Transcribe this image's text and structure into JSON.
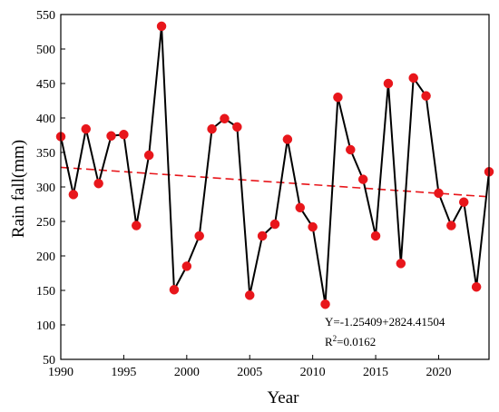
{
  "chart_data": {
    "type": "line",
    "xlabel": "Year",
    "ylabel": "Rain fall(mm)",
    "xlim": [
      1990,
      2024
    ],
    "ylim": [
      50,
      550
    ],
    "xticks": [
      1990,
      1995,
      2000,
      2005,
      2010,
      2015,
      2020
    ],
    "yticks": [
      50,
      100,
      150,
      200,
      250,
      300,
      350,
      400,
      450,
      500,
      550
    ],
    "grid": false,
    "series": [
      {
        "color": "#000000",
        "marker_color": "#e8161b",
        "x": [
          1990,
          1991,
          1992,
          1993,
          1994,
          1995,
          1996,
          1997,
          1998,
          1999,
          2000,
          2001,
          2002,
          2003,
          2004,
          2005,
          2006,
          2007,
          2008,
          2009,
          2010,
          2011,
          2012,
          2013,
          2014,
          2015,
          2016,
          2017,
          2018,
          2019,
          2020,
          2021,
          2022,
          2023,
          2024
        ],
        "y": [
          373,
          289,
          384,
          305,
          374,
          376,
          244,
          346,
          533,
          151,
          185,
          229,
          384,
          399,
          387,
          143,
          229,
          246,
          369,
          270,
          242,
          130,
          430,
          354,
          311,
          229,
          450,
          189,
          458,
          432,
          291,
          244,
          278,
          155,
          322
        ]
      }
    ],
    "trendline": {
      "color": "#e8161b",
      "style": "dashed",
      "x": [
        1990,
        2024
      ],
      "y": [
        328.4,
        285.7
      ]
    },
    "annotations": {
      "equation": "Y=-1.25409+2824.41504",
      "r2_prefix": "R",
      "r2_sup": "2",
      "r2_value": "=0.0162"
    }
  }
}
